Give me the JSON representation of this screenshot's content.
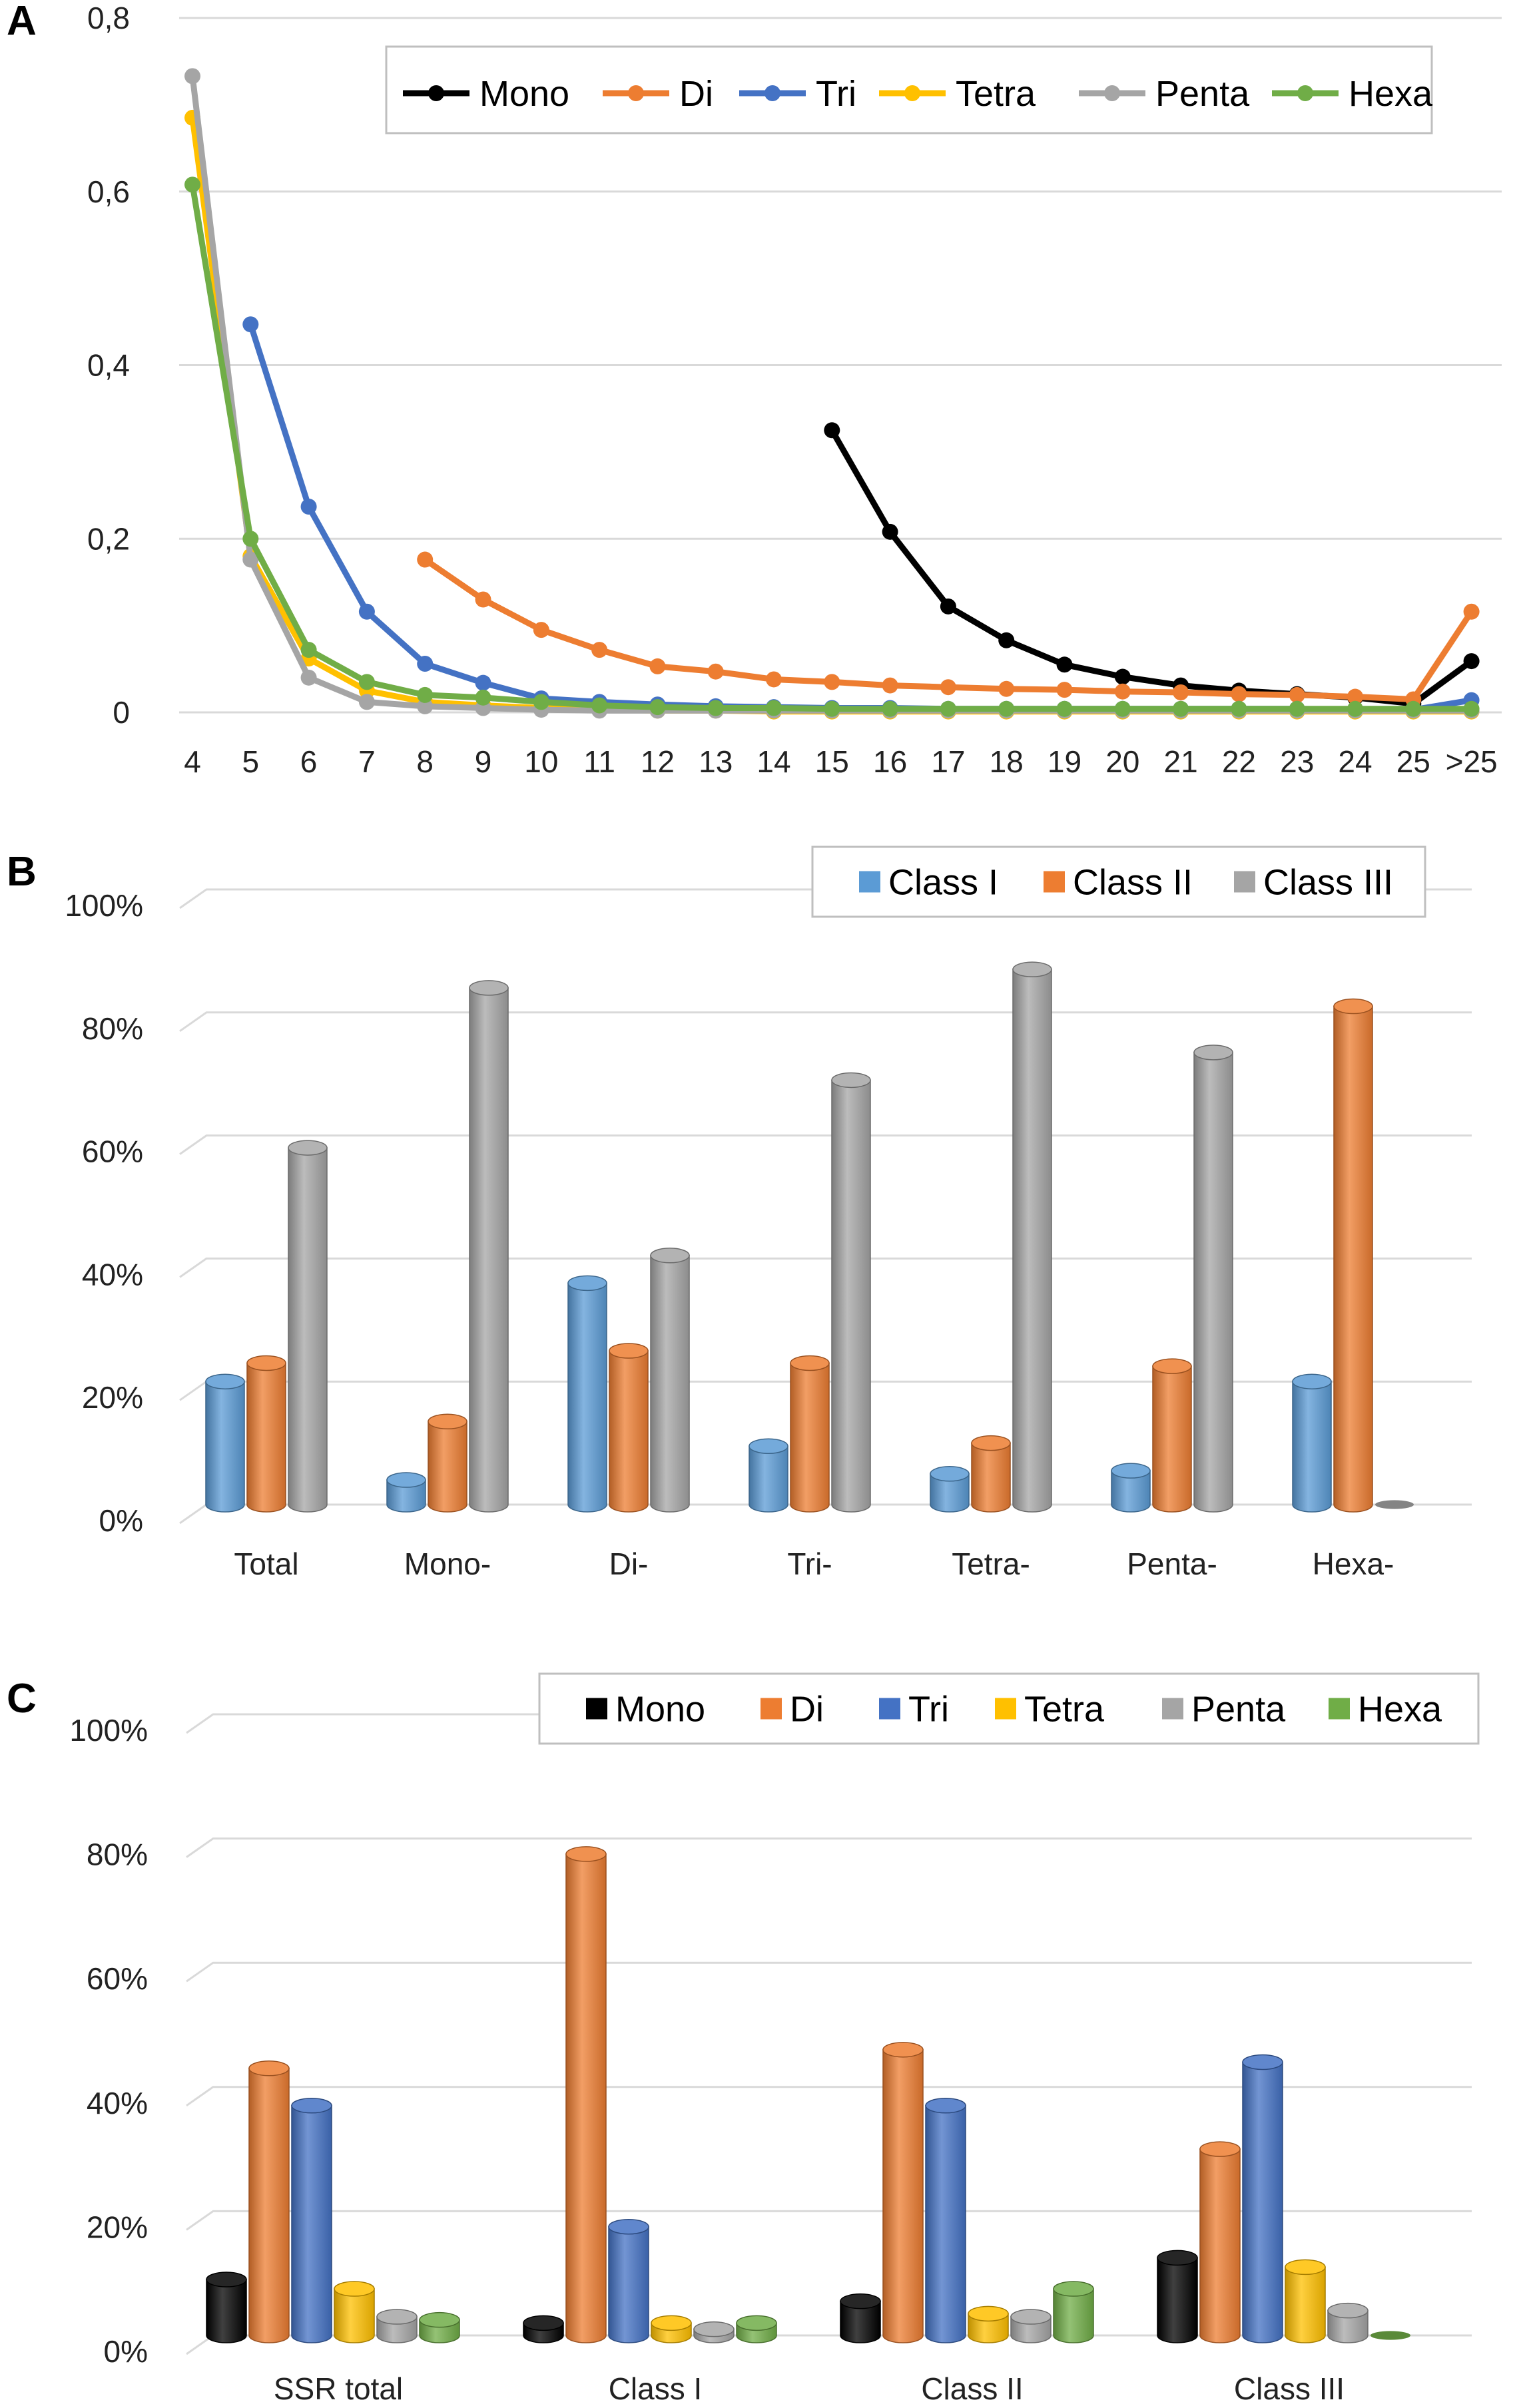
{
  "panels": [
    {
      "letter": "A",
      "chart_data": {
        "type": "line",
        "categories": [
          "4",
          "5",
          "6",
          "7",
          "8",
          "9",
          "10",
          "11",
          "12",
          "13",
          "14",
          "15",
          "16",
          "17",
          "18",
          "19",
          "20",
          "21",
          "22",
          "23",
          "24",
          "25",
          ">25"
        ],
        "ylim": [
          0,
          0.8
        ],
        "yticks": [
          0,
          0.2,
          0.4,
          0.6,
          0.8
        ],
        "ytick_labels": [
          "0",
          "0,2",
          "0,4",
          "0,6",
          "0,8"
        ],
        "legend": "top-right",
        "series": [
          {
            "name": "Mono",
            "color": "#000000",
            "values": [
              null,
              null,
              null,
              null,
              null,
              null,
              null,
              null,
              null,
              null,
              null,
              0.325,
              0.208,
              0.122,
              0.083,
              0.055,
              0.041,
              0.031,
              0.025,
              0.021,
              0.017,
              0.01,
              0.059
            ]
          },
          {
            "name": "Di",
            "color": "#ED7D31",
            "values": [
              null,
              null,
              null,
              null,
              0.176,
              0.13,
              0.095,
              0.072,
              0.053,
              0.047,
              0.038,
              0.035,
              0.031,
              0.029,
              0.027,
              0.026,
              0.024,
              0.023,
              0.021,
              0.02,
              0.018,
              0.015,
              0.116
            ]
          },
          {
            "name": "Tri",
            "color": "#4472C4",
            "values": [
              null,
              0.447,
              0.237,
              0.116,
              0.056,
              0.034,
              0.016,
              0.012,
              0.009,
              0.007,
              0.006,
              0.005,
              0.005,
              0.004,
              0.004,
              0.004,
              0.004,
              0.004,
              0.004,
              0.004,
              0.003,
              0.003,
              0.014
            ]
          },
          {
            "name": "Tetra",
            "color": "#FFC000",
            "values": [
              0.685,
              0.18,
              0.062,
              0.025,
              0.012,
              0.008,
              0.005,
              0.003,
              0.002,
              0.002,
              0.001,
              0.001,
              0.001,
              0.001,
              0.001,
              0.001,
              0.001,
              0.001,
              0.001,
              0.001,
              0.001,
              0.001,
              0.001
            ]
          },
          {
            "name": "Penta",
            "color": "#A5A5A5",
            "values": [
              0.733,
              0.176,
              0.04,
              0.012,
              0.007,
              0.005,
              0.003,
              0.002,
              0.002,
              0.002,
              0.002,
              0.002,
              0.002,
              0.002,
              0.002,
              0.002,
              0.002,
              0.002,
              0.002,
              0.002,
              0.002,
              0.002,
              0.002
            ]
          },
          {
            "name": "Hexa",
            "color": "#70AD47",
            "values": [
              0.608,
              0.2,
              0.072,
              0.035,
              0.02,
              0.017,
              0.012,
              0.008,
              0.006,
              0.005,
              0.005,
              0.004,
              0.004,
              0.004,
              0.004,
              0.004,
              0.004,
              0.004,
              0.004,
              0.004,
              0.004,
              0.004,
              0.004
            ]
          }
        ]
      }
    },
    {
      "letter": "B",
      "chart_data": {
        "type": "bar",
        "categories": [
          "Total",
          "Mono-",
          "Di-",
          "Tri-",
          "Tetra-",
          "Penta-",
          "Hexa-"
        ],
        "ylim": [
          0,
          100
        ],
        "yticks": [
          0,
          20,
          40,
          60,
          80,
          100
        ],
        "ytick_labels": [
          "0%",
          "20%",
          "40%",
          "60%",
          "80%",
          "100%"
        ],
        "legend": "top-right",
        "series": [
          {
            "name": "Class I",
            "color": "#5B9BD5",
            "values": [
              20,
              4,
              36,
              9.5,
              5,
              5.5,
              20
            ]
          },
          {
            "name": "Class II",
            "color": "#ED7D31",
            "values": [
              23,
              13.5,
              25,
              23,
              10,
              22.5,
              81
            ]
          },
          {
            "name": "Class III",
            "color": "#A5A5A5",
            "values": [
              58,
              84,
              40.5,
              69,
              87,
              73.5,
              0
            ]
          }
        ]
      }
    },
    {
      "letter": "C",
      "chart_data": {
        "type": "bar",
        "categories": [
          "SSR total",
          "Class I",
          "Class II",
          "Class III"
        ],
        "ylim": [
          0,
          100
        ],
        "yticks": [
          0,
          20,
          40,
          60,
          80,
          100
        ],
        "ytick_labels": [
          "0%",
          "20%",
          "40%",
          "60%",
          "80%",
          "100%"
        ],
        "legend": "top-right",
        "series": [
          {
            "name": "Mono",
            "color": "#000000",
            "values": [
              9,
              2,
              5.5,
              12.5
            ]
          },
          {
            "name": "Di",
            "color": "#ED7D31",
            "values": [
              43,
              77.5,
              46,
              30
            ]
          },
          {
            "name": "Tri",
            "color": "#4472C4",
            "values": [
              37,
              17.5,
              37,
              44
            ]
          },
          {
            "name": "Tetra",
            "color": "#FFC000",
            "values": [
              7.5,
              2,
              3.5,
              11
            ]
          },
          {
            "name": "Penta",
            "color": "#A5A5A5",
            "values": [
              3,
              1,
              3,
              4
            ]
          },
          {
            "name": "Hexa",
            "color": "#70AD47",
            "values": [
              2.5,
              2,
              7.5,
              0
            ]
          }
        ]
      }
    }
  ]
}
